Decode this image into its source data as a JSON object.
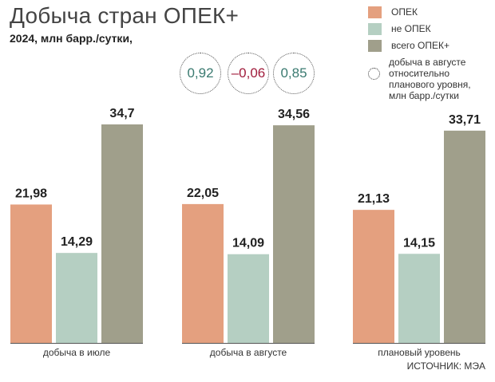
{
  "title": "Добыча стран ОПЕК+",
  "subtitle": "2024, млн барр./сутки,",
  "source": "ИСТОЧНИК: МЭА",
  "colors": {
    "opec": "#e4a07f",
    "non_opec": "#b5cfc2",
    "total": "#a09f8b",
    "positive": "#3a7a70",
    "negative": "#a01c3c"
  },
  "legend": {
    "items": [
      {
        "label": "ОПЕК",
        "color": "#e4a07f"
      },
      {
        "label": "не ОПЕК",
        "color": "#b5cfc2"
      },
      {
        "label": "всего ОПЕК+",
        "color": "#a09f8b"
      }
    ],
    "note": "добыча в августе относительно планового уровня, млн барр./сутки"
  },
  "deviations": [
    {
      "label": "0,92",
      "value": 0.92,
      "color": "#3a7a70"
    },
    {
      "label": "–0,06",
      "value": -0.06,
      "color": "#a01c3c"
    },
    {
      "label": "0,85",
      "value": 0.85,
      "color": "#3a7a70"
    }
  ],
  "chart_data": {
    "type": "bar",
    "categories": [
      "добыча в июле",
      "добыча в августе",
      "плановый уровень"
    ],
    "series": [
      {
        "name": "ОПЕК",
        "values": [
          21.98,
          22.05,
          21.13
        ],
        "labels": [
          "21,98",
          "22,05",
          "21,13"
        ]
      },
      {
        "name": "не ОПЕК",
        "values": [
          14.29,
          14.09,
          14.15
        ],
        "labels": [
          "14,29",
          "14,09",
          "14,15"
        ]
      },
      {
        "name": "всего ОПЕК+",
        "values": [
          34.7,
          34.56,
          33.71
        ],
        "labels": [
          "34,7",
          "34,56",
          "33,71"
        ]
      }
    ],
    "ylim": [
      0,
      34.7
    ],
    "grid": false,
    "legend_position": "top-right"
  }
}
